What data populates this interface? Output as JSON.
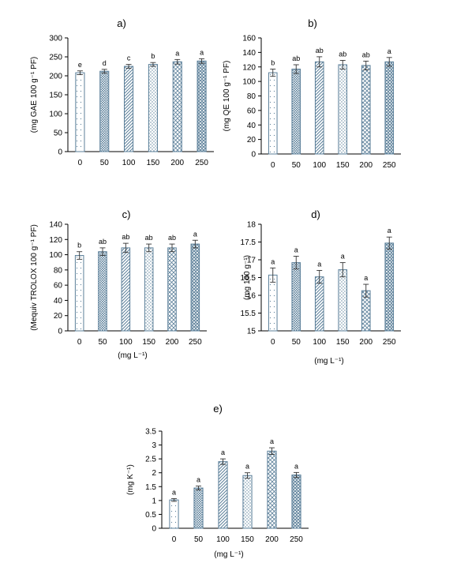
{
  "chart_data": [
    {
      "type": "bar",
      "title": "a)",
      "ylabel": "(mg GAE 100 g⁻¹ PF)",
      "xlabel": "",
      "categories": [
        "0",
        "50",
        "100",
        "150",
        "200",
        "250"
      ],
      "values": [
        208,
        212,
        225,
        230,
        237,
        239
      ],
      "errors": [
        5,
        5,
        5,
        5,
        6,
        6
      ],
      "letters": [
        "e",
        "d",
        "c",
        "b",
        "a",
        "a"
      ],
      "ylim": [
        0,
        300
      ],
      "yticks": [
        "0",
        "50",
        "100",
        "150",
        "200",
        "250",
        "300"
      ]
    },
    {
      "type": "bar",
      "title": "b)",
      "ylabel": "(mg QE 100 g⁻¹ PF)",
      "xlabel": "",
      "categories": [
        "0",
        "50",
        "100",
        "150",
        "200",
        "250"
      ],
      "values": [
        112,
        117,
        127,
        123,
        122,
        127
      ],
      "errors": [
        5,
        6,
        7,
        6,
        6,
        6
      ],
      "letters": [
        "b",
        "ab",
        "ab",
        "ab",
        "ab",
        "a"
      ],
      "ylim": [
        0,
        160
      ],
      "yticks": [
        "0",
        "20",
        "40",
        "60",
        "80",
        "100",
        "120",
        "140",
        "160"
      ]
    },
    {
      "type": "bar",
      "title": "c)",
      "ylabel": "(Mequiv TROLOX 100 g⁻¹ PF)",
      "xlabel": "(mg L⁻¹)",
      "categories": [
        "0",
        "50",
        "100",
        "150",
        "200",
        "250"
      ],
      "values": [
        99,
        104,
        109,
        109,
        109,
        114
      ],
      "errors": [
        5,
        5,
        6,
        5,
        5,
        5
      ],
      "letters": [
        "b",
        "ab",
        "ab",
        "ab",
        "ab",
        "a"
      ],
      "ylim": [
        0,
        140
      ],
      "yticks": [
        "0",
        "20",
        "40",
        "60",
        "80",
        "100",
        "120",
        "140"
      ]
    },
    {
      "type": "bar",
      "title": "d)",
      "ylabel": "(mg 100 g⁻¹)",
      "xlabel": "(mg L⁻¹)",
      "categories": [
        "0",
        "50",
        "100",
        "150",
        "200",
        "250"
      ],
      "values": [
        16.57,
        16.92,
        16.52,
        16.72,
        16.13,
        17.47
      ],
      "errors": [
        0.2,
        0.18,
        0.18,
        0.2,
        0.18,
        0.17
      ],
      "letters": [
        "a",
        "a",
        "a",
        "a",
        "a",
        "a"
      ],
      "ylim": [
        15,
        18
      ],
      "yticks": [
        "15",
        "15.5",
        "16",
        "16.5",
        "17",
        "17.5",
        "18"
      ]
    },
    {
      "type": "bar",
      "title": "e)",
      "ylabel": "(mg K⁻¹)",
      "xlabel": "(mg L⁻¹)",
      "categories": [
        "0",
        "50",
        "100",
        "150",
        "200",
        "250"
      ],
      "values": [
        1.02,
        1.45,
        2.4,
        1.9,
        2.78,
        1.92
      ],
      "errors": [
        0.05,
        0.07,
        0.1,
        0.1,
        0.12,
        0.09
      ],
      "letters": [
        "a",
        "a",
        "a",
        "a",
        "a",
        "a"
      ],
      "ylim": [
        0,
        3.5
      ],
      "yticks": [
        "0",
        "0.5",
        "1",
        "1.5",
        "2",
        "2.5",
        "3",
        "3.5"
      ]
    }
  ],
  "colors": {
    "bar_stroke": "#5b7f99",
    "bar_fill": "#ffffff",
    "pattern": "#5b7f99",
    "axis": "#000000",
    "text": "#000000"
  }
}
